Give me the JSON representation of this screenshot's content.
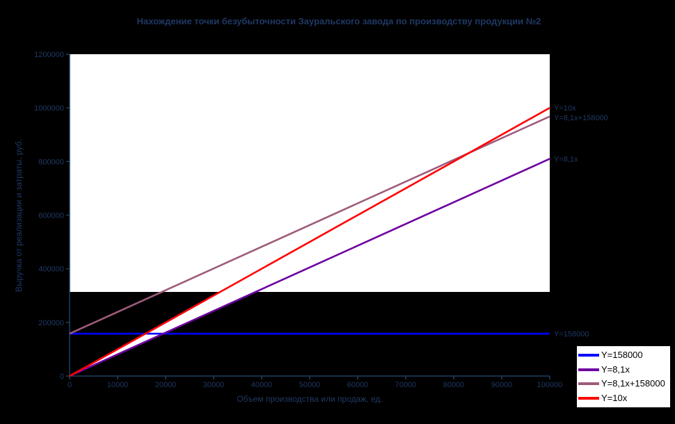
{
  "chart_data": {
    "type": "line",
    "title": "Нахождение точки безубыточности Зауральского завода по производству продукции №2",
    "xlabel": "Объем производства или продаж, ед.",
    "ylabel": "Выручка от реализации и затраты, руб.",
    "xlim": [
      0,
      100000
    ],
    "xstep": 10000,
    "ylim": [
      0,
      1200000
    ],
    "ystep": 200000,
    "grid": false,
    "legend_position": "bottom-right",
    "series": [
      {
        "name": "Y=158000",
        "label": "Y=158000",
        "slope": 0,
        "intercept": 158000,
        "color": "#0000FF"
      },
      {
        "name": "Y=8,1x",
        "label": "Y=8,1x",
        "slope": 8.1,
        "intercept": 0,
        "color": "#6E00A0"
      },
      {
        "name": "Y=8,1x+158000",
        "label": "Y=8,1x+158000",
        "slope": 8.1,
        "intercept": 158000,
        "color": "#9E5B7B"
      },
      {
        "name": "Y=10x",
        "label": "Y=10x",
        "slope": 10,
        "intercept": 0,
        "color": "#FF0000"
      }
    ]
  },
  "colors": {
    "background": "#000000",
    "plot_fill": "#FFFFFF",
    "axis": "#1F4060",
    "text": "#1F3864",
    "legend_border": "#000000",
    "legend_bg": "#FFFFFF",
    "legend_text": "#000000"
  }
}
